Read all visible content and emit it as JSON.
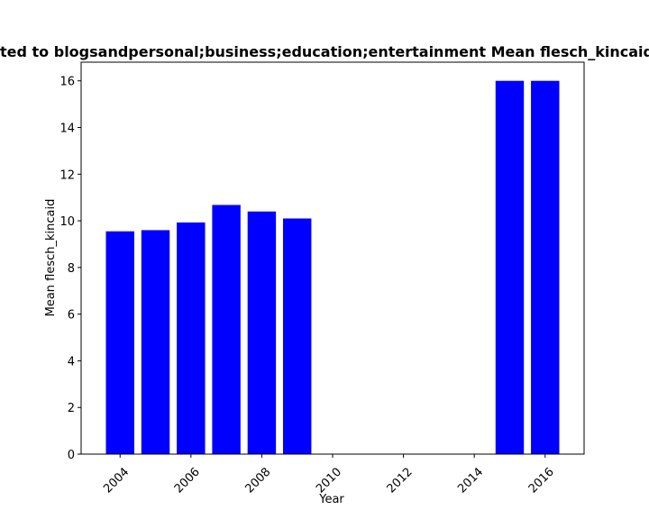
{
  "chart_data": {
    "type": "bar",
    "title": "ted to blogsandpersonal;business;education;entertainment Mean flesch_kincaid",
    "xlabel": "Year",
    "ylabel": "Mean flesch_kincaid",
    "x": [
      2004,
      2005,
      2006,
      2007,
      2008,
      2009,
      2015,
      2016
    ],
    "values": [
      9.55,
      9.6,
      9.93,
      10.68,
      10.4,
      10.1,
      16.0,
      16.0
    ],
    "bar_color": "#0000ff",
    "xlim": [
      2002.9,
      2017.1
    ],
    "ylim": [
      0,
      16.8
    ],
    "xticks": [
      2004,
      2006,
      2008,
      2010,
      2012,
      2014,
      2016
    ],
    "yticks": [
      0,
      2,
      4,
      6,
      8,
      10,
      12,
      14,
      16
    ],
    "xtick_rotation": 45,
    "grid": false,
    "legend": "none"
  }
}
